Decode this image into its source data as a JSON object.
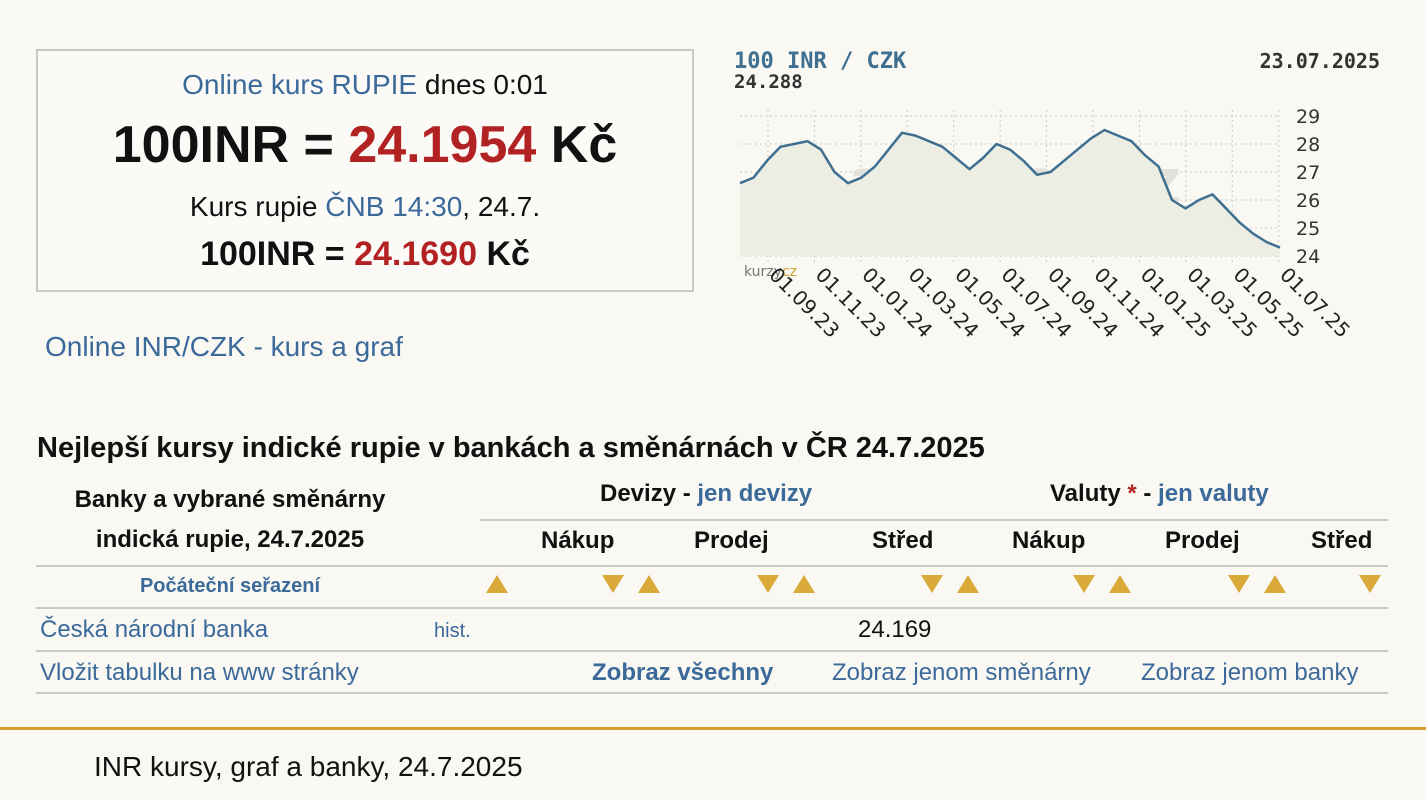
{
  "rate_box": {
    "line1_link": "Online kurs RUPIE",
    "line1_rest": " dnes 0:01",
    "main_left": "100INR = ",
    "main_value": "24.1954",
    "main_unit": " Kč",
    "cnb_prefix": "Kurs rupie ",
    "cnb_link": "ČNB 14:30",
    "cnb_date": ", 24.7.",
    "cnb_left": "100INR = ",
    "cnb_value": "24.1690",
    "cnb_unit": " Kč"
  },
  "online_link": "Online INR/CZK - kurs a graf",
  "chart_data": {
    "type": "line",
    "title": "100 INR / CZK",
    "subtitle": "24.288",
    "date": "23.07.2025",
    "watermark": "100 INR / CZ",
    "brand": "kurzy",
    "brand_suffix": "cz",
    "ylim": [
      24,
      29
    ],
    "y_ticks": [
      "29",
      "28",
      "27",
      "26",
      "25",
      "24"
    ],
    "x_ticks": [
      "01.09.23",
      "01.11.23",
      "01.01.24",
      "01.03.24",
      "01.05.24",
      "01.07.24",
      "01.09.24",
      "01.11.24",
      "01.01.25",
      "01.03.25",
      "01.05.25",
      "01.07.25"
    ],
    "colors": {
      "line": "#3f6f90",
      "area": "#eceee4",
      "grid": "#c9c9c9"
    },
    "series": [
      {
        "values": [
          26.6,
          26.8,
          27.4,
          27.9,
          28.0,
          28.1,
          27.8,
          27.0,
          26.6,
          26.8,
          27.2,
          27.8,
          28.4,
          28.3,
          28.1,
          27.9,
          27.5,
          27.1,
          27.5,
          28.0,
          27.8,
          27.4,
          26.9,
          27.0,
          27.4,
          27.8,
          28.2,
          28.5,
          28.3,
          28.1,
          27.6,
          27.2,
          26.0,
          25.7,
          26.0,
          26.2,
          25.7,
          25.2,
          24.8,
          24.5,
          24.3
        ]
      }
    ]
  },
  "table": {
    "title": "Nejlepší kursy indické rupie v bankách a směnárnách v ČR 24.7.2025",
    "left_header_1": "Banky a vybrané směnárny",
    "left_header_2": "indická rupie, 24.7.2025",
    "devizy_label": "Devizy",
    "devizy_link": "jen devizy",
    "valuty_label": "Valuty",
    "valuty_star": "*",
    "valuty_link": "jen valuty",
    "dash": " - ",
    "col_nakup": "Nákup",
    "col_prodej": "Prodej",
    "col_stred": "Střed",
    "sort_label": "Počáteční seřazení",
    "row1_name": "Česká národní banka",
    "row1_hist": "hist.",
    "row1_stred": "24.169",
    "embed_link": "Vložit tabulku na www stránky",
    "show_all": "Zobraz všechny",
    "show_exchanges": "Zobraz jenom směnárny",
    "show_banks": "Zobraz jenom banky"
  },
  "footer": "INR kursy, graf a banky, 24.7.2025"
}
